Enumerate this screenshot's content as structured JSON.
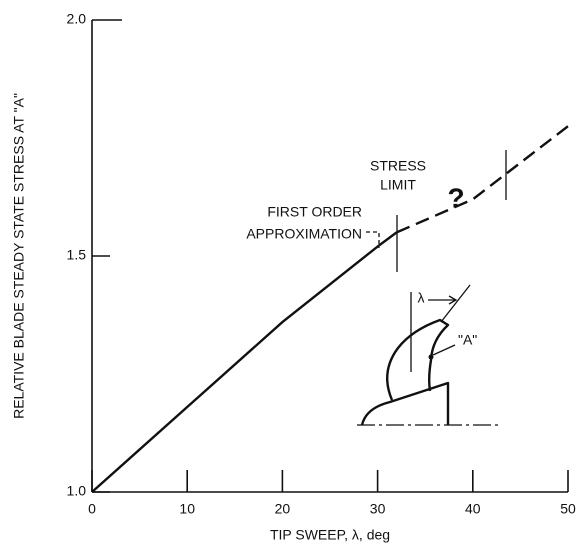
{
  "chart_data": {
    "type": "line",
    "xlabel": "TIP SWEEP, λ, deg",
    "ylabel": "RELATIVE BLADE STEADY STATE STRESS AT \"A\"",
    "xlim": [
      0,
      50
    ],
    "xticks": [
      0,
      10,
      20,
      30,
      40,
      50
    ],
    "ylim": [
      1,
      2
    ],
    "yticks": [
      {
        "value": 1,
        "label": "1.0"
      },
      {
        "value": 1.5,
        "label": "1.5"
      },
      {
        "value": 2,
        "label": "2.0"
      }
    ],
    "series": [
      {
        "color": "#111111",
        "style": "solid",
        "x": [
          0,
          10,
          20,
          30,
          32
        ],
        "values": [
          1.0,
          1.18,
          1.36,
          1.52,
          1.55
        ]
      },
      {
        "color": "#111111",
        "style": "dashed",
        "x": [
          32,
          40,
          50
        ],
        "values": [
          1.55,
          1.62,
          1.775
        ]
      }
    ],
    "annotations": [
      [
        "STRESS",
        "LIMIT"
      ],
      [
        "FIRST ORDER",
        "APPROXIMATION"
      ],
      [
        "?"
      ],
      [
        "λ"
      ],
      [
        "\"A\""
      ]
    ]
  }
}
